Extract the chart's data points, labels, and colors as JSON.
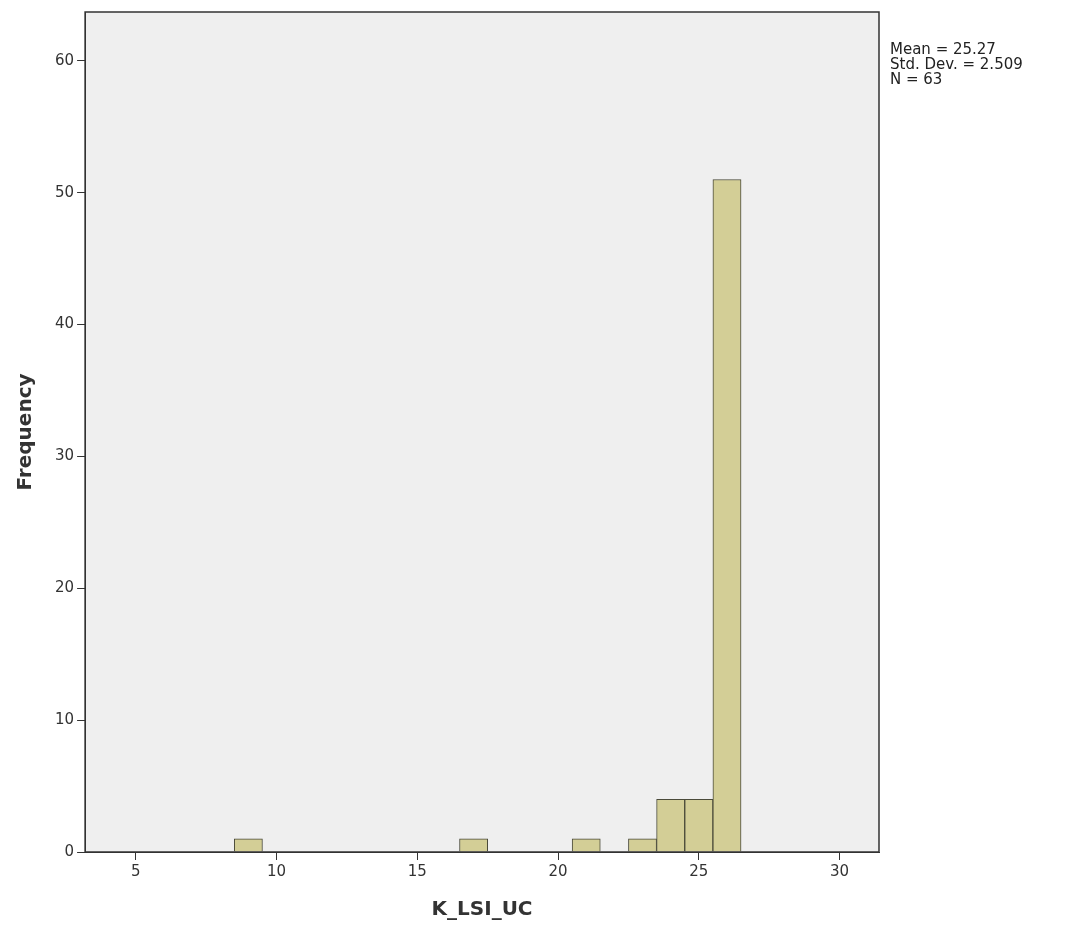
{
  "chart_data": {
    "type": "histogram",
    "xlabel": "K_LSI_UC",
    "ylabel": "Frequency",
    "bins": [
      8.5,
      9.5,
      10.5,
      11.5,
      12.5,
      13.5,
      14.5,
      15.5,
      16.5,
      17.5,
      18.5,
      19.5,
      20.5,
      21.5,
      22.5,
      23.5,
      24.5,
      25.5,
      26.5
    ],
    "values": [
      1,
      0,
      0,
      0,
      0,
      0,
      0,
      0,
      1,
      0,
      0,
      0,
      1,
      0,
      1,
      4,
      4,
      51
    ],
    "color": "#d3ce96",
    "xlim": [
      3.2,
      31.4
    ],
    "xticks": [
      5,
      10,
      15,
      20,
      25,
      30
    ],
    "ylim": [
      0,
      63.7
    ],
    "yticks": [
      0,
      10,
      20,
      30,
      40,
      50,
      60
    ],
    "grid": false,
    "legend": false,
    "annotations": [
      "Mean = 25.27",
      "Std. Dev. = 2.509",
      "N = 63"
    ]
  }
}
